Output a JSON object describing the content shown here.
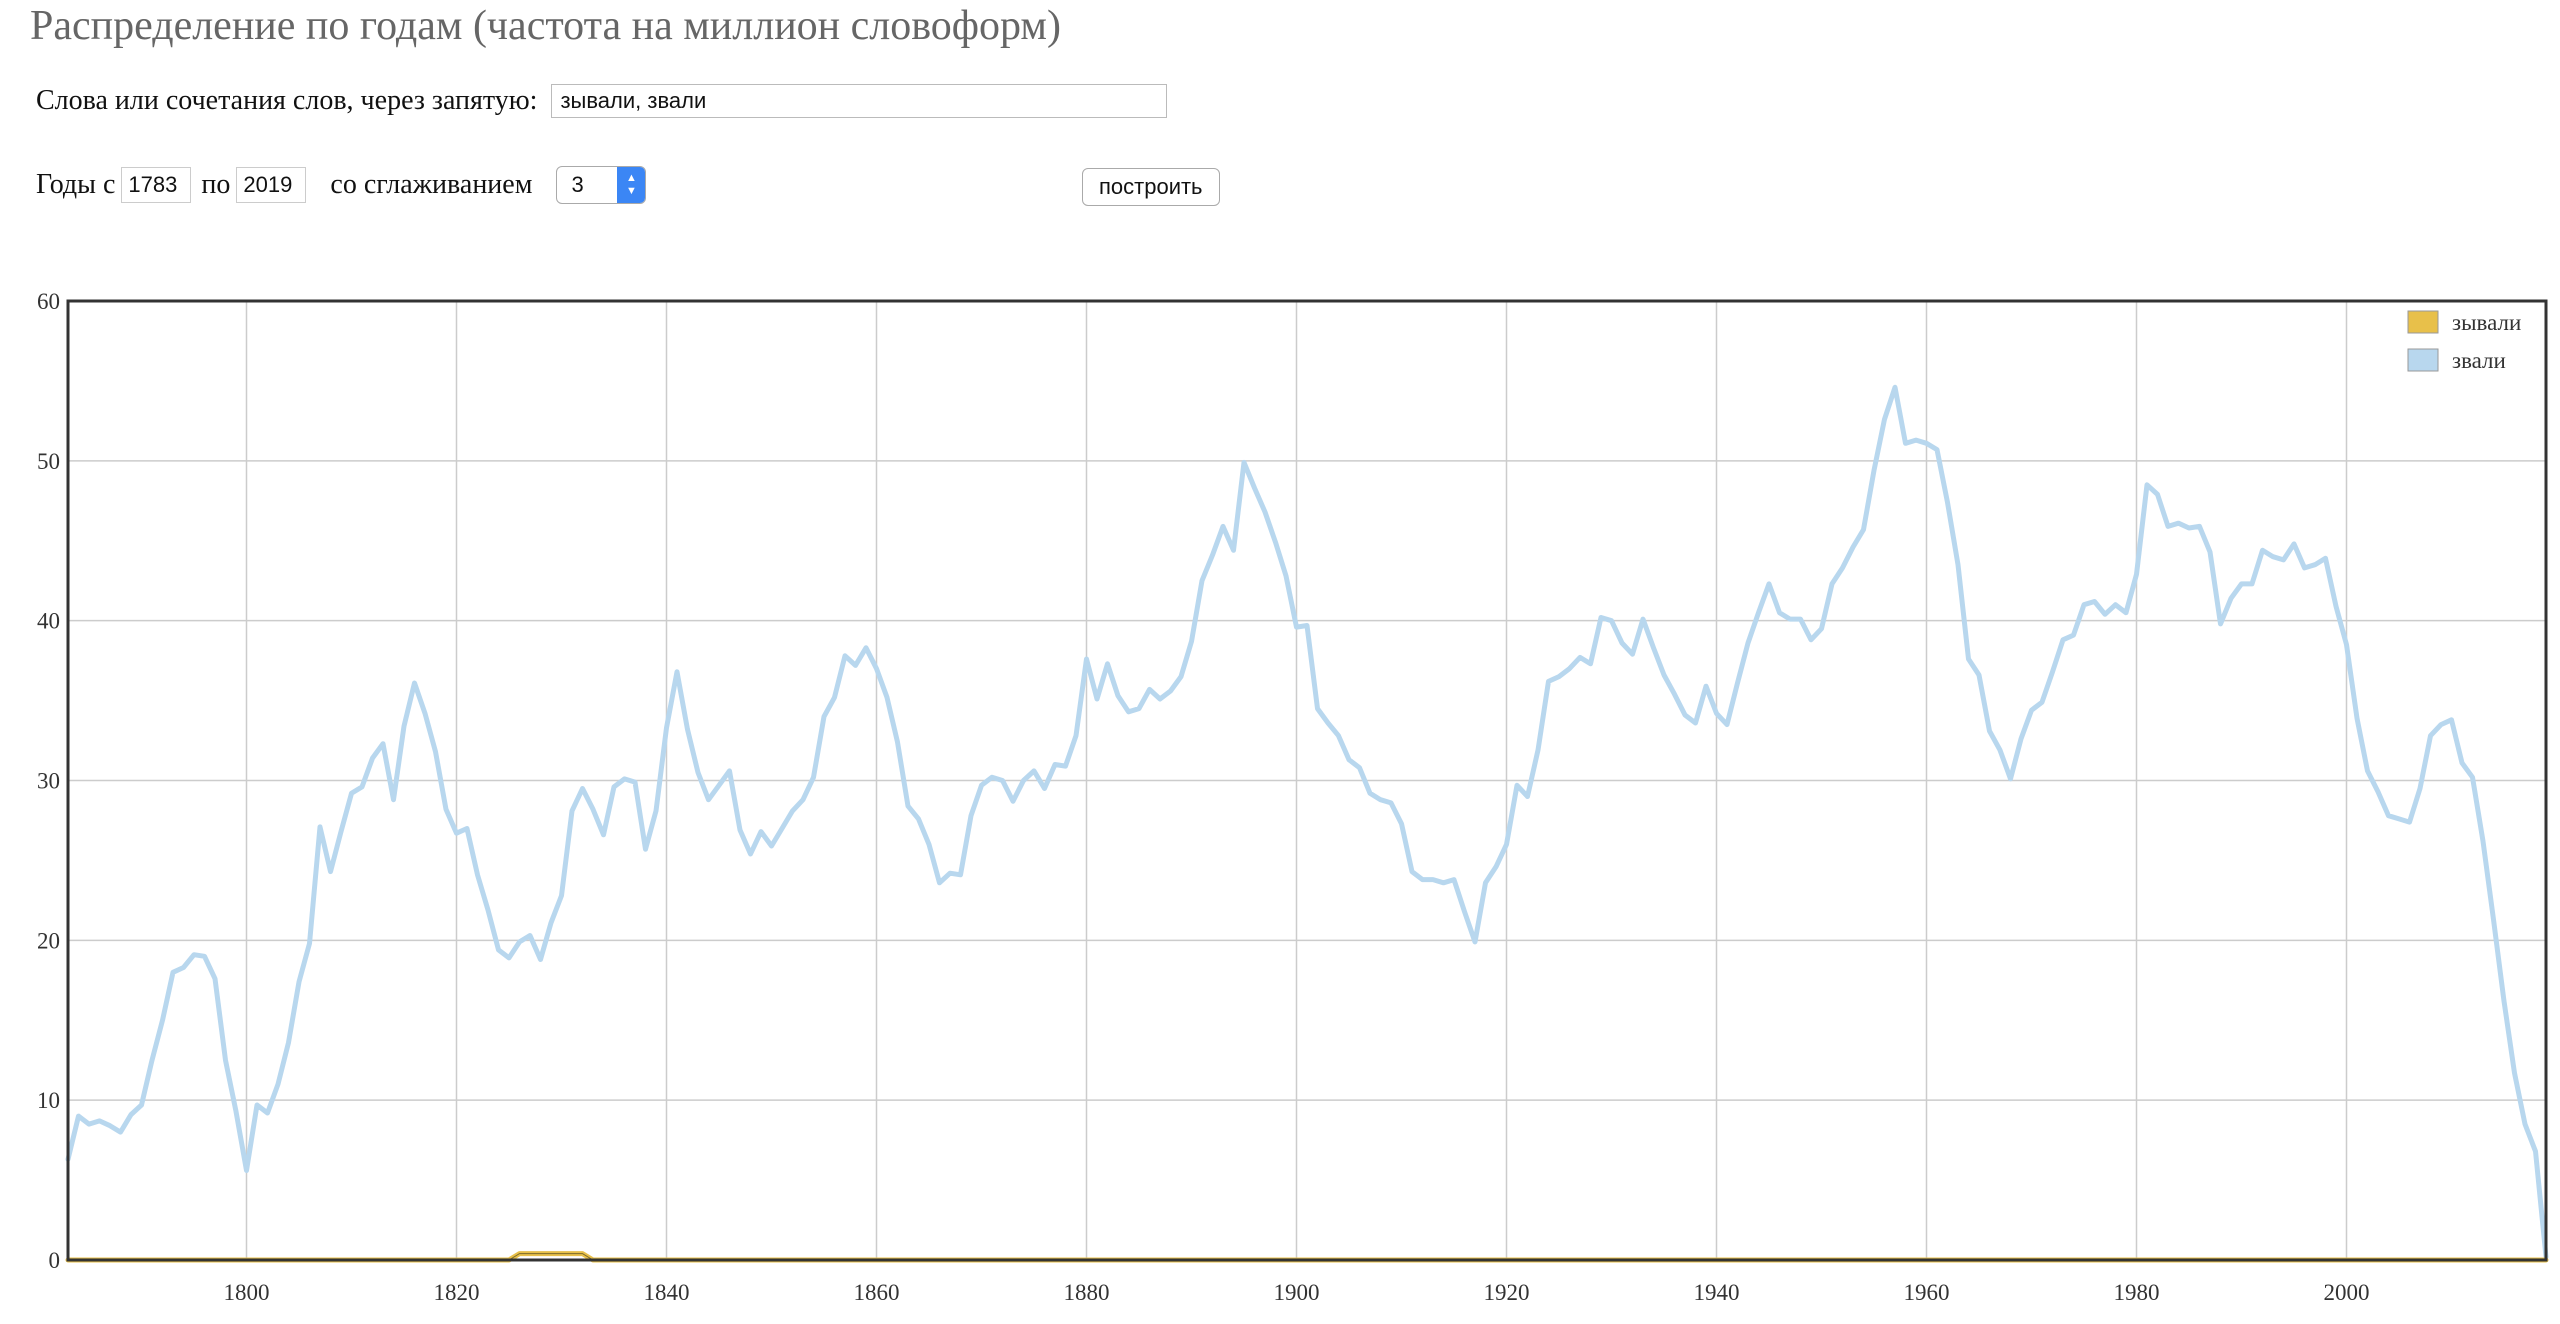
{
  "page": {
    "title": "Распределение по годам (частота на миллион словоформ)"
  },
  "form": {
    "words_label": "Слова или сочетания слов, через запятую:",
    "words_value": "зывали, звали",
    "years_from_label": "Годы с",
    "year_from": "1783",
    "years_to_label": "по",
    "year_to": "2019",
    "smoothing_label": "со сглаживанием",
    "smoothing_value": "3",
    "build_button": "построить"
  },
  "colors": {
    "series_1": "#e8c04a",
    "series_2": "#b8d7ee",
    "grid": "#cccccc",
    "frame": "#333333"
  },
  "chart_data": {
    "type": "line",
    "title": "",
    "xlabel": "",
    "ylabel": "",
    "xlim": [
      1783,
      2019
    ],
    "ylim": [
      0,
      60
    ],
    "xticks": [
      1800,
      1820,
      1840,
      1860,
      1880,
      1900,
      1920,
      1940,
      1960,
      1980,
      2000
    ],
    "yticks": [
      0,
      10,
      20,
      30,
      40,
      50,
      60
    ],
    "grid": true,
    "legend_position": "top-right",
    "series": [
      {
        "name": "зывали",
        "color": "#e8c04a",
        "points": [
          [
            1783,
            0
          ],
          [
            1825,
            0
          ],
          [
            1826,
            0.4
          ],
          [
            1832,
            0.4
          ],
          [
            1833,
            0
          ],
          [
            2019,
            0
          ]
        ]
      },
      {
        "name": "звали",
        "color": "#b8d7ee",
        "points": [
          [
            1783,
            6.3
          ],
          [
            1784,
            9
          ],
          [
            1785,
            8.5
          ],
          [
            1786,
            8.7
          ],
          [
            1787,
            8.4
          ],
          [
            1788,
            8.0
          ],
          [
            1789,
            9.1
          ],
          [
            1790,
            9.7
          ],
          [
            1791,
            12.5
          ],
          [
            1792,
            15
          ],
          [
            1793,
            18
          ],
          [
            1794,
            18.3
          ],
          [
            1795,
            19.1
          ],
          [
            1796,
            19
          ],
          [
            1797,
            17.6
          ],
          [
            1798,
            12.5
          ],
          [
            1799,
            9.3
          ],
          [
            1800,
            5.6
          ],
          [
            1801,
            9.7
          ],
          [
            1802,
            9.2
          ],
          [
            1803,
            11
          ],
          [
            1804,
            13.6
          ],
          [
            1805,
            17.4
          ],
          [
            1806,
            19.8
          ],
          [
            1807,
            27.1
          ],
          [
            1808,
            24.3
          ],
          [
            1809,
            26.8
          ],
          [
            1810,
            29.2
          ],
          [
            1811,
            29.6
          ],
          [
            1812,
            31.4
          ],
          [
            1813,
            32.3
          ],
          [
            1814,
            28.8
          ],
          [
            1815,
            33.4
          ],
          [
            1816,
            36.1
          ],
          [
            1817,
            34.2
          ],
          [
            1818,
            31.8
          ],
          [
            1819,
            28.2
          ],
          [
            1820,
            26.7
          ],
          [
            1821,
            27
          ],
          [
            1822,
            24.1
          ],
          [
            1823,
            21.9
          ],
          [
            1824,
            19.4
          ],
          [
            1825,
            18.9
          ],
          [
            1826,
            19.9
          ],
          [
            1827,
            20.3
          ],
          [
            1828,
            18.8
          ],
          [
            1829,
            21.1
          ],
          [
            1830,
            22.8
          ],
          [
            1831,
            28.1
          ],
          [
            1832,
            29.5
          ],
          [
            1833,
            28.2
          ],
          [
            1834,
            26.6
          ],
          [
            1835,
            29.6
          ],
          [
            1836,
            30.1
          ],
          [
            1837,
            29.9
          ],
          [
            1838,
            25.7
          ],
          [
            1839,
            28.1
          ],
          [
            1840,
            33.3
          ],
          [
            1841,
            36.8
          ],
          [
            1842,
            33.2
          ],
          [
            1843,
            30.5
          ],
          [
            1844,
            28.8
          ],
          [
            1845,
            29.7
          ],
          [
            1846,
            30.6
          ],
          [
            1847,
            26.9
          ],
          [
            1848,
            25.4
          ],
          [
            1849,
            26.8
          ],
          [
            1850,
            25.9
          ],
          [
            1851,
            27
          ],
          [
            1852,
            28.1
          ],
          [
            1853,
            28.8
          ],
          [
            1854,
            30.2
          ],
          [
            1855,
            34
          ],
          [
            1856,
            35.2
          ],
          [
            1857,
            37.8
          ],
          [
            1858,
            37.2
          ],
          [
            1859,
            38.3
          ],
          [
            1860,
            37
          ],
          [
            1861,
            35.2
          ],
          [
            1862,
            32.4
          ],
          [
            1863,
            28.4
          ],
          [
            1864,
            27.6
          ],
          [
            1865,
            26
          ],
          [
            1866,
            23.6
          ],
          [
            1867,
            24.2
          ],
          [
            1868,
            24.1
          ],
          [
            1869,
            27.8
          ],
          [
            1870,
            29.7
          ],
          [
            1871,
            30.2
          ],
          [
            1872,
            30
          ],
          [
            1873,
            28.7
          ],
          [
            1874,
            30
          ],
          [
            1875,
            30.6
          ],
          [
            1876,
            29.5
          ],
          [
            1877,
            31
          ],
          [
            1878,
            30.9
          ],
          [
            1879,
            32.8
          ],
          [
            1880,
            37.6
          ],
          [
            1881,
            35.1
          ],
          [
            1882,
            37.3
          ],
          [
            1883,
            35.3
          ],
          [
            1884,
            34.3
          ],
          [
            1885,
            34.5
          ],
          [
            1886,
            35.7
          ],
          [
            1887,
            35.1
          ],
          [
            1888,
            35.6
          ],
          [
            1889,
            36.5
          ],
          [
            1890,
            38.7
          ],
          [
            1891,
            42.5
          ],
          [
            1892,
            44.1
          ],
          [
            1893,
            45.9
          ],
          [
            1894,
            44.4
          ],
          [
            1895,
            49.9
          ],
          [
            1896,
            48.3
          ],
          [
            1897,
            46.8
          ],
          [
            1898,
            44.9
          ],
          [
            1899,
            42.8
          ],
          [
            1900,
            39.6
          ],
          [
            1901,
            39.7
          ],
          [
            1902,
            34.5
          ],
          [
            1903,
            33.6
          ],
          [
            1904,
            32.8
          ],
          [
            1905,
            31.3
          ],
          [
            1906,
            30.8
          ],
          [
            1907,
            29.2
          ],
          [
            1908,
            28.8
          ],
          [
            1909,
            28.6
          ],
          [
            1910,
            27.3
          ],
          [
            1911,
            24.3
          ],
          [
            1912,
            23.8
          ],
          [
            1913,
            23.8
          ],
          [
            1914,
            23.6
          ],
          [
            1915,
            23.8
          ],
          [
            1916,
            21.8
          ],
          [
            1917,
            19.9
          ],
          [
            1918,
            23.6
          ],
          [
            1919,
            24.6
          ],
          [
            1920,
            26
          ],
          [
            1921,
            29.7
          ],
          [
            1922,
            29
          ],
          [
            1923,
            31.9
          ],
          [
            1924,
            36.2
          ],
          [
            1925,
            36.5
          ],
          [
            1926,
            37
          ],
          [
            1927,
            37.7
          ],
          [
            1928,
            37.3
          ],
          [
            1929,
            40.2
          ],
          [
            1930,
            40
          ],
          [
            1931,
            38.6
          ],
          [
            1932,
            37.9
          ],
          [
            1933,
            40.1
          ],
          [
            1934,
            38.3
          ],
          [
            1935,
            36.6
          ],
          [
            1936,
            35.4
          ],
          [
            1937,
            34.1
          ],
          [
            1938,
            33.6
          ],
          [
            1939,
            35.9
          ],
          [
            1940,
            34.2
          ],
          [
            1941,
            33.5
          ],
          [
            1942,
            36.1
          ],
          [
            1943,
            38.6
          ],
          [
            1944,
            40.5
          ],
          [
            1945,
            42.3
          ],
          [
            1946,
            40.5
          ],
          [
            1947,
            40.1
          ],
          [
            1948,
            40.1
          ],
          [
            1949,
            38.8
          ],
          [
            1950,
            39.5
          ],
          [
            1951,
            42.3
          ],
          [
            1952,
            43.3
          ],
          [
            1953,
            44.6
          ],
          [
            1954,
            45.7
          ],
          [
            1955,
            49.4
          ],
          [
            1956,
            52.6
          ],
          [
            1957,
            54.6
          ],
          [
            1958,
            51.1
          ],
          [
            1959,
            51.3
          ],
          [
            1960,
            51.1
          ],
          [
            1961,
            50.7
          ],
          [
            1962,
            47.4
          ],
          [
            1963,
            43.5
          ],
          [
            1964,
            37.6
          ],
          [
            1965,
            36.6
          ],
          [
            1966,
            33.1
          ],
          [
            1967,
            31.9
          ],
          [
            1968,
            30.1
          ],
          [
            1969,
            32.6
          ],
          [
            1970,
            34.4
          ],
          [
            1971,
            34.9
          ],
          [
            1972,
            36.8
          ],
          [
            1973,
            38.8
          ],
          [
            1974,
            39.1
          ],
          [
            1975,
            41
          ],
          [
            1976,
            41.2
          ],
          [
            1977,
            40.4
          ],
          [
            1978,
            41
          ],
          [
            1979,
            40.5
          ],
          [
            1980,
            42.9
          ],
          [
            1981,
            48.5
          ],
          [
            1982,
            47.9
          ],
          [
            1983,
            45.9
          ],
          [
            1984,
            46.1
          ],
          [
            1985,
            45.8
          ],
          [
            1986,
            45.9
          ],
          [
            1987,
            44.3
          ],
          [
            1988,
            39.8
          ],
          [
            1989,
            41.4
          ],
          [
            1990,
            42.3
          ],
          [
            1991,
            42.3
          ],
          [
            1992,
            44.4
          ],
          [
            1993,
            44
          ],
          [
            1994,
            43.8
          ],
          [
            1995,
            44.8
          ],
          [
            1996,
            43.3
          ],
          [
            1997,
            43.5
          ],
          [
            1998,
            43.9
          ],
          [
            1999,
            40.9
          ],
          [
            2000,
            38.5
          ],
          [
            2001,
            33.9
          ],
          [
            2002,
            30.6
          ],
          [
            2003,
            29.3
          ],
          [
            2004,
            27.8
          ],
          [
            2005,
            27.6
          ],
          [
            2006,
            27.4
          ],
          [
            2007,
            29.5
          ],
          [
            2008,
            32.8
          ],
          [
            2009,
            33.5
          ],
          [
            2010,
            33.8
          ],
          [
            2011,
            31.1
          ],
          [
            2012,
            30.2
          ],
          [
            2013,
            26.2
          ],
          [
            2014,
            21.3
          ],
          [
            2015,
            16.2
          ],
          [
            2016,
            11.7
          ],
          [
            2017,
            8.5
          ],
          [
            2018,
            6.8
          ],
          [
            2019,
            0.2
          ]
        ]
      }
    ]
  }
}
